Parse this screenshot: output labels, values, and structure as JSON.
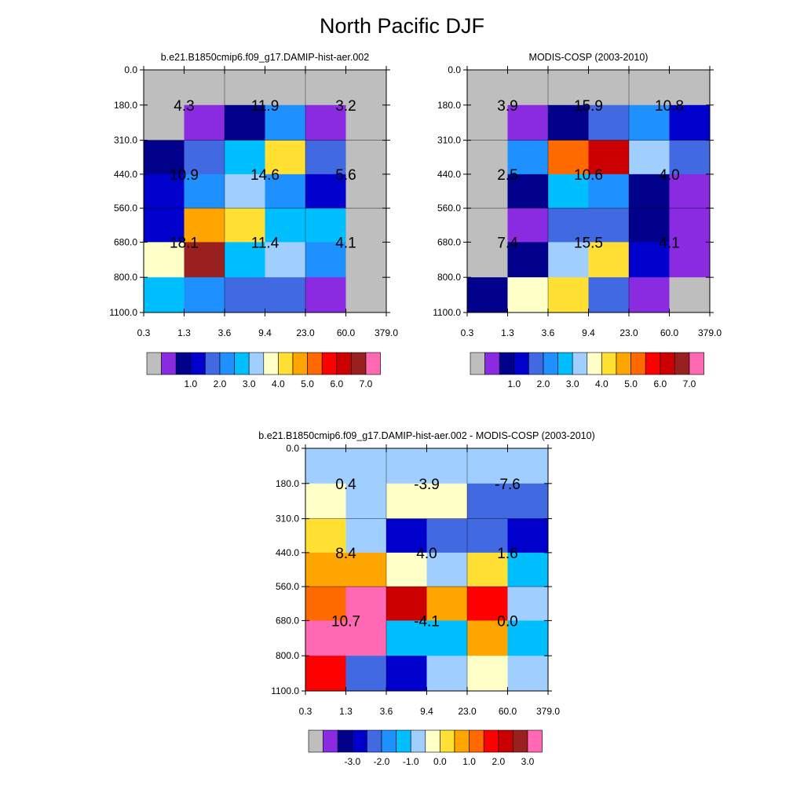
{
  "page_title": "North Pacific DJF",
  "colors": {
    "gray": "#bebebe",
    "frame": "#000000",
    "outline": "#000000",
    "tint": "#000000"
  },
  "chart_data": [
    {
      "type": "heatmap",
      "title": "b.e21.B1850cmip6.f09_g17.DAMIP-hist-aer.002",
      "x_tick_labels": [
        "0.3",
        "1.3",
        "3.6",
        "9.4",
        "23.0",
        "60.0",
        "379.0"
      ],
      "y_tick_labels": [
        "0.0",
        "180.0",
        "310.0",
        "440.0",
        "560.0",
        "680.0",
        "800.0",
        "1100.0"
      ],
      "colorbar": {
        "colors": [
          "#bebebe",
          "#8a2be2",
          "#00008b",
          "#0000cd",
          "#4169e1",
          "#1e90ff",
          "#00bfff",
          "#a0cfff",
          "#ffffc8",
          "#ffe033",
          "#ffa500",
          "#ff6a00",
          "#ff0000",
          "#cc0000",
          "#9a2020",
          "#ff69b4"
        ],
        "labels": [
          "1.0",
          "2.0",
          "3.0",
          "4.0",
          "5.0",
          "6.0",
          "7.0"
        ]
      },
      "cells": [
        [
          "#bebebe",
          "#bebebe",
          "#bebebe",
          "#bebebe",
          "#bebebe",
          "#bebebe"
        ],
        [
          "#bebebe",
          "#8a2be2",
          "#00008b",
          "#1e90ff",
          "#8a2be2",
          "#bebebe"
        ],
        [
          "#00008b",
          "#4169e1",
          "#00bfff",
          "#ffe033",
          "#4169e1",
          "#bebebe"
        ],
        [
          "#0000cd",
          "#1e90ff",
          "#a0cfff",
          "#1e90ff",
          "#0000cd",
          "#bebebe"
        ],
        [
          "#0000cd",
          "#ffa500",
          "#ffe033",
          "#00bfff",
          "#00bfff",
          "#bebebe"
        ],
        [
          "#ffffc8",
          "#9a2020",
          "#00bfff",
          "#a0cfff",
          "#1e90ff",
          "#bebebe"
        ],
        [
          "#00bfff",
          "#1e90ff",
          "#4169e1",
          "#4169e1",
          "#8a2be2",
          "#bebebe"
        ]
      ],
      "annotations": [
        {
          "col": 0,
          "row": 0,
          "text": "4.3"
        },
        {
          "col": 1,
          "row": 0,
          "text": "11.9"
        },
        {
          "col": 2,
          "row": 0,
          "text": "3.2"
        },
        {
          "col": 0,
          "row": 1,
          "text": "10.9"
        },
        {
          "col": 1,
          "row": 1,
          "text": "14.6"
        },
        {
          "col": 2,
          "row": 1,
          "text": "5.6"
        },
        {
          "col": 0,
          "row": 2,
          "text": "18.1"
        },
        {
          "col": 1,
          "row": 2,
          "text": "11.4"
        },
        {
          "col": 2,
          "row": 2,
          "text": "4.1"
        }
      ]
    },
    {
      "type": "heatmap",
      "title": "MODIS-COSP (2003-2010)",
      "x_tick_labels": [
        "0.3",
        "1.3",
        "3.6",
        "9.4",
        "23.0",
        "60.0",
        "379.0"
      ],
      "y_tick_labels": [
        "0.0",
        "180.0",
        "310.0",
        "440.0",
        "560.0",
        "680.0",
        "800.0",
        "1100.0"
      ],
      "colorbar": {
        "colors": [
          "#bebebe",
          "#8a2be2",
          "#00008b",
          "#0000cd",
          "#4169e1",
          "#1e90ff",
          "#00bfff",
          "#a0cfff",
          "#ffffc8",
          "#ffe033",
          "#ffa500",
          "#ff6a00",
          "#ff0000",
          "#cc0000",
          "#9a2020",
          "#ff69b4"
        ],
        "labels": [
          "1.0",
          "2.0",
          "3.0",
          "4.0",
          "5.0",
          "6.0",
          "7.0"
        ]
      },
      "cells": [
        [
          "#bebebe",
          "#bebebe",
          "#bebebe",
          "#bebebe",
          "#bebebe",
          "#bebebe"
        ],
        [
          "#bebebe",
          "#8a2be2",
          "#00008b",
          "#4169e1",
          "#1e90ff",
          "#0000cd"
        ],
        [
          "#bebebe",
          "#1e90ff",
          "#ff6a00",
          "#cc0000",
          "#a0cfff",
          "#4169e1"
        ],
        [
          "#bebebe",
          "#00008b",
          "#00bfff",
          "#1e90ff",
          "#00008b",
          "#8a2be2"
        ],
        [
          "#bebebe",
          "#8a2be2",
          "#4169e1",
          "#4169e1",
          "#00008b",
          "#8a2be2"
        ],
        [
          "#bebebe",
          "#00008b",
          "#a0cfff",
          "#ffe033",
          "#0000cd",
          "#8a2be2"
        ],
        [
          "#00008b",
          "#ffffc8",
          "#ffe033",
          "#4169e1",
          "#8a2be2",
          "#bebebe"
        ]
      ],
      "annotations": [
        {
          "col": 0,
          "row": 0,
          "text": "3.9"
        },
        {
          "col": 1,
          "row": 0,
          "text": "15.9"
        },
        {
          "col": 2,
          "row": 0,
          "text": "10.8"
        },
        {
          "col": 0,
          "row": 1,
          "text": "2.5"
        },
        {
          "col": 1,
          "row": 1,
          "text": "10.6"
        },
        {
          "col": 2,
          "row": 1,
          "text": "4.0"
        },
        {
          "col": 0,
          "row": 2,
          "text": "7.4"
        },
        {
          "col": 1,
          "row": 2,
          "text": "15.5"
        },
        {
          "col": 2,
          "row": 2,
          "text": "4.1"
        }
      ]
    },
    {
      "type": "heatmap",
      "title": "b.e21.B1850cmip6.f09_g17.DAMIP-hist-aer.002 - MODIS-COSP (2003-2010)",
      "x_tick_labels": [
        "0.3",
        "1.3",
        "3.6",
        "9.4",
        "23.0",
        "60.0",
        "379.0"
      ],
      "y_tick_labels": [
        "0.0",
        "180.0",
        "310.0",
        "440.0",
        "560.0",
        "680.0",
        "800.0",
        "1100.0"
      ],
      "colorbar": {
        "colors": [
          "#bebebe",
          "#8a2be2",
          "#00008b",
          "#0000cd",
          "#4169e1",
          "#1e90ff",
          "#00bfff",
          "#a0cfff",
          "#ffffc8",
          "#ffe033",
          "#ffa500",
          "#ff6a00",
          "#ff0000",
          "#cc0000",
          "#9a2020",
          "#ff69b4"
        ],
        "labels": [
          "-3.0",
          "-2.0",
          "-1.0",
          "0.0",
          "1.0",
          "2.0",
          "3.0"
        ]
      },
      "cells": [
        [
          "#a0cfff",
          "#a0cfff",
          "#a0cfff",
          "#a0cfff",
          "#a0cfff",
          "#a0cfff"
        ],
        [
          "#ffffc8",
          "#a0cfff",
          "#ffffc8",
          "#ffffc8",
          "#4169e1",
          "#4169e1"
        ],
        [
          "#ffe033",
          "#a0cfff",
          "#0000cd",
          "#4169e1",
          "#4169e1",
          "#0000cd"
        ],
        [
          "#ffa500",
          "#ffa500",
          "#ffffc8",
          "#a0cfff",
          "#ffe033",
          "#00bfff"
        ],
        [
          "#ff6a00",
          "#ff69b4",
          "#cc0000",
          "#ffa500",
          "#ff0000",
          "#a0cfff"
        ],
        [
          "#ff69b4",
          "#ff69b4",
          "#00bfff",
          "#00bfff",
          "#ffa500",
          "#00bfff"
        ],
        [
          "#ff0000",
          "#4169e1",
          "#0000cd",
          "#a0cfff",
          "#ffffc8",
          "#a0cfff"
        ]
      ],
      "annotations": [
        {
          "col": 0,
          "row": 0,
          "text": "0.4"
        },
        {
          "col": 1,
          "row": 0,
          "text": "-3.9"
        },
        {
          "col": 2,
          "row": 0,
          "text": "-7.6"
        },
        {
          "col": 0,
          "row": 1,
          "text": "8.4"
        },
        {
          "col": 1,
          "row": 1,
          "text": "4.0"
        },
        {
          "col": 2,
          "row": 1,
          "text": "1.6"
        },
        {
          "col": 0,
          "row": 2,
          "text": "10.7"
        },
        {
          "col": 1,
          "row": 2,
          "text": "-4.1"
        },
        {
          "col": 2,
          "row": 2,
          "text": "0.0"
        }
      ]
    }
  ]
}
